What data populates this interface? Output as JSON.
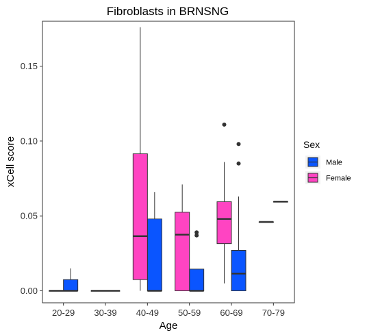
{
  "chart_data": {
    "type": "boxplot",
    "title": "Fibroblasts in BRNSNG",
    "xlabel": "Age",
    "ylabel": "xCell score",
    "categories": [
      "20-29",
      "30-39",
      "40-49",
      "50-59",
      "60-69",
      "70-79"
    ],
    "yticks": [
      "0.00",
      "0.05",
      "0.10",
      "0.15"
    ],
    "ylim": [
      -0.008,
      0.18
    ],
    "grid": false,
    "legend": {
      "title": "Sex",
      "placement": "right"
    },
    "series": [
      {
        "name": "Male",
        "color": "#0a55ff",
        "boxes": [
          {
            "category": "20-29",
            "min": 0.0,
            "q1": 0.0,
            "median": 0.0,
            "q3": 0.0075,
            "max": 0.015,
            "outliers": []
          },
          {
            "category": "30-39",
            "min": 0.0,
            "q1": 0.0,
            "median": 0.0,
            "q3": 0.0,
            "max": 0.0,
            "outliers": []
          },
          {
            "category": "40-49",
            "min": 0.0,
            "q1": 0.0,
            "median": 0.0,
            "q3": 0.048,
            "max": 0.066,
            "outliers": []
          },
          {
            "category": "50-59",
            "min": 0.0,
            "q1": 0.0,
            "median": 0.0,
            "q3": 0.0145,
            "max": 0.0145,
            "outliers": [
              0.039,
              0.037
            ]
          },
          {
            "category": "60-69",
            "min": 0.0,
            "q1": 0.0,
            "median": 0.0115,
            "q3": 0.027,
            "max": 0.063,
            "outliers": [
              0.098,
              0.085
            ]
          },
          {
            "category": "70-79",
            "min": 0.0595,
            "q1": 0.0595,
            "median": 0.0595,
            "q3": 0.0595,
            "max": 0.0595,
            "outliers": []
          }
        ]
      },
      {
        "name": "Female",
        "color": "#ff44c2",
        "boxes": [
          {
            "category": "20-29",
            "min": 0.0,
            "q1": 0.0,
            "median": 0.0,
            "q3": 0.0,
            "max": 0.0,
            "outliers": []
          },
          {
            "category": "30-39",
            "min": 0.0,
            "q1": 0.0,
            "median": 0.0,
            "q3": 0.0,
            "max": 0.0,
            "outliers": []
          },
          {
            "category": "40-49",
            "min": 0.0,
            "q1": 0.0075,
            "median": 0.0365,
            "q3": 0.0915,
            "max": 0.176,
            "outliers": []
          },
          {
            "category": "50-59",
            "min": 0.0,
            "q1": 0.0,
            "median": 0.0375,
            "q3": 0.0525,
            "max": 0.071,
            "outliers": []
          },
          {
            "category": "60-69",
            "min": 0.005,
            "q1": 0.0315,
            "median": 0.048,
            "q3": 0.0595,
            "max": 0.086,
            "outliers": [
              0.111
            ]
          },
          {
            "category": "70-79",
            "min": 0.046,
            "q1": 0.046,
            "median": 0.046,
            "q3": 0.046,
            "max": 0.046,
            "outliers": []
          }
        ]
      }
    ],
    "legend_order": [
      "Male",
      "Female"
    ]
  }
}
